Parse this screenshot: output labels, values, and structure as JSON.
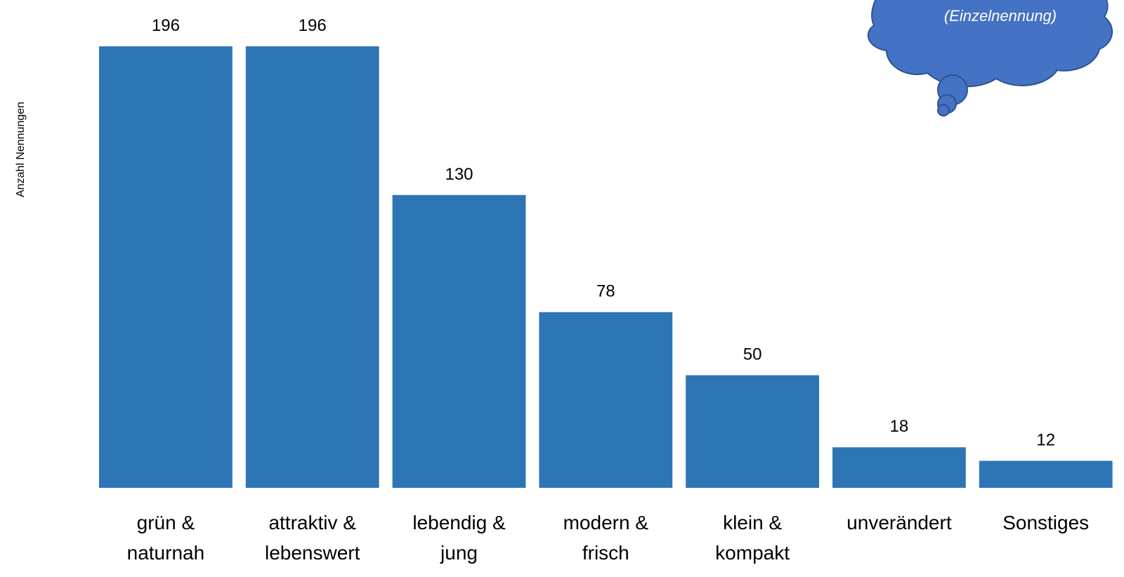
{
  "chart_data": {
    "type": "bar",
    "categories": [
      [
        "grün &",
        "naturnah"
      ],
      [
        "attraktiv &",
        "lebenswert"
      ],
      [
        "lebendig &",
        "jung"
      ],
      [
        "modern &",
        "frisch"
      ],
      [
        "klein &",
        "kompakt"
      ],
      [
        "unverändert"
      ],
      [
        "Sonstiges"
      ]
    ],
    "values": [
      196,
      196,
      130,
      78,
      50,
      18,
      12
    ],
    "ylabel": "Anzahl Nennungen",
    "ylim": [
      0,
      196
    ],
    "grid": false,
    "bar_color": "#2E75B6",
    "annotation": "(Einzelnennung)",
    "annotation_color": "#4472C4"
  }
}
